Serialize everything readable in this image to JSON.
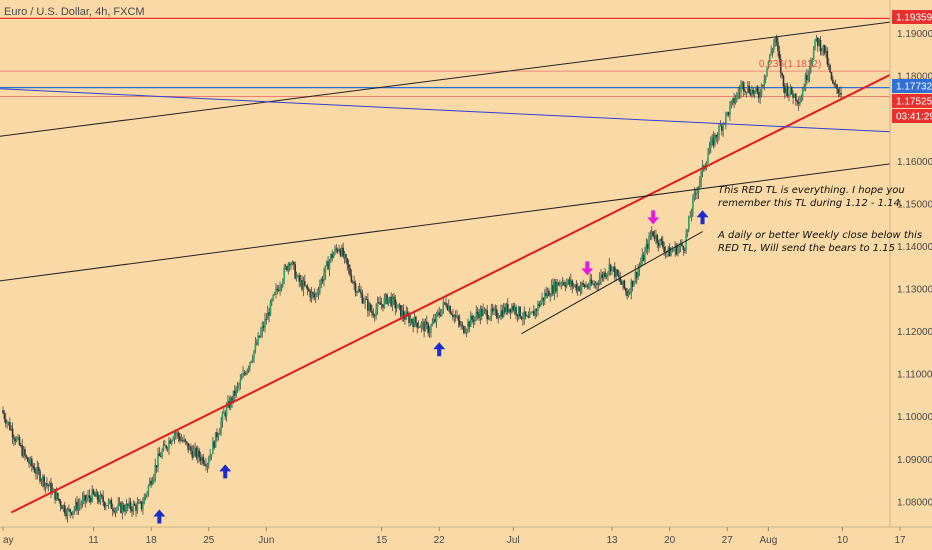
{
  "header": {
    "title": "Euro / U.S. Dollar, 4h, FXCM"
  },
  "annotations": {
    "note1_line1": "This RED TL is everything. I hope you",
    "note1_line2": "remember this TL during 1.12 - 1.14.",
    "note2_line1": "A daily or better Weekly close below this",
    "note2_line2": "RED TL, Will send the bears to 1.15",
    "fib_label": "0.236(1.1812)"
  },
  "price_tags": [
    {
      "label": "1.19359",
      "value": 1.19359,
      "color": "#e8312e"
    },
    {
      "label": "1.17732",
      "value": 1.17732,
      "color": "#2f6fd6"
    },
    {
      "label": "1.17525",
      "value": 1.17525,
      "color": "#e8312e"
    },
    {
      "label": "03:41:29",
      "value": 1.1729,
      "color": "#e8312e"
    }
  ],
  "chart_data": {
    "type": "candlestick",
    "title": "Euro / U.S. Dollar, 4h, FXCM",
    "ylim": [
      1.0755,
      1.1965
    ],
    "y_ticks": [
      1.08,
      1.09,
      1.1,
      1.11,
      1.12,
      1.13,
      1.14,
      1.15,
      1.16,
      1.17,
      1.18,
      1.19
    ],
    "y_tick_labels": [
      "1.08000",
      "1.09000",
      "1.10000",
      "1.11000",
      "1.12000",
      "1.13000",
      "1.14000",
      "1.15000",
      "1.16000",
      "1.17000",
      "1.18000",
      "1.19000"
    ],
    "x_ticks": [
      {
        "label": "ay",
        "day": 0
      },
      {
        "label": "11",
        "day": 11
      },
      {
        "label": "18",
        "day": 18
      },
      {
        "label": "25",
        "day": 25
      },
      {
        "label": "Jun",
        "day": 32
      },
      {
        "label": "15",
        "day": 46
      },
      {
        "label": "22",
        "day": 53
      },
      {
        "label": "Jul",
        "day": 62
      },
      {
        "label": "13",
        "day": 74
      },
      {
        "label": "20",
        "day": 81
      },
      {
        "label": "27",
        "day": 88
      },
      {
        "label": "Aug",
        "day": 93
      },
      {
        "label": "10",
        "day": 102
      },
      {
        "label": "17",
        "day": 109
      }
    ],
    "price_path": [
      [
        0,
        1.1015
      ],
      [
        3,
        1.09
      ],
      [
        6,
        1.083
      ],
      [
        8,
        1.0775
      ],
      [
        11,
        1.0815
      ],
      [
        14,
        1.0785
      ],
      [
        17,
        1.079
      ],
      [
        19,
        1.09
      ],
      [
        21,
        1.0965
      ],
      [
        23,
        1.092
      ],
      [
        25,
        1.0895
      ],
      [
        27,
        1.1005
      ],
      [
        29,
        1.108
      ],
      [
        31,
        1.117
      ],
      [
        33,
        1.1275
      ],
      [
        35,
        1.137
      ],
      [
        36,
        1.132
      ],
      [
        38,
        1.128
      ],
      [
        40,
        1.1375
      ],
      [
        41,
        1.14
      ],
      [
        43,
        1.1305
      ],
      [
        45,
        1.1245
      ],
      [
        47,
        1.128
      ],
      [
        49,
        1.1235
      ],
      [
        52,
        1.1205
      ],
      [
        54,
        1.127
      ],
      [
        56,
        1.1205
      ],
      [
        58,
        1.1245
      ],
      [
        60,
        1.124
      ],
      [
        62,
        1.126
      ],
      [
        64,
        1.1225
      ],
      [
        66,
        1.1285
      ],
      [
        68,
        1.132
      ],
      [
        70,
        1.1305
      ],
      [
        72,
        1.131
      ],
      [
        74,
        1.1355
      ],
      [
        76,
        1.129
      ],
      [
        78,
        1.1375
      ],
      [
        79,
        1.1435
      ],
      [
        81,
        1.1385
      ],
      [
        83,
        1.1405
      ],
      [
        84,
        1.1505
      ],
      [
        86,
        1.163
      ],
      [
        88,
        1.1705
      ],
      [
        90,
        1.178
      ],
      [
        92,
        1.1755
      ],
      [
        94,
        1.189
      ],
      [
        95,
        1.1775
      ],
      [
        97,
        1.1745
      ],
      [
        99,
        1.1885
      ],
      [
        100,
        1.186
      ],
      [
        101,
        1.1775
      ],
      [
        102,
        1.1765
      ]
    ],
    "horizontal_lines": [
      {
        "value": 1.19359,
        "color": "#e8312e",
        "width": 1.3
      },
      {
        "value": 1.1812,
        "color": "#e8736a",
        "width": 0.8
      },
      {
        "value": 1.17732,
        "color": "#2f6fd6",
        "width": 1.3
      },
      {
        "value": 1.17525,
        "color": "#e8736a",
        "width": 0.8
      }
    ],
    "trend_lines": [
      {
        "name": "red-uptrend",
        "from": [
          1,
          1.0775
        ],
        "to": [
          109,
          1.1815
        ],
        "color": "#e01c1c",
        "width": 2
      },
      {
        "name": "upper-channel",
        "from": [
          -2,
          1.1655
        ],
        "to": [
          111,
          1.1935
        ],
        "color": "#222222",
        "width": 1
      },
      {
        "name": "mid-resistance",
        "from": [
          -2,
          1.1315
        ],
        "to": [
          120,
          1.1625
        ],
        "color": "#222222",
        "width": 1
      },
      {
        "name": "blue-downtrend",
        "from": [
          -2,
          1.1772
        ],
        "to": [
          120,
          1.1658
        ],
        "color": "#2f3fd0",
        "width": 1
      },
      {
        "name": "short-channel",
        "from": [
          63,
          1.1195
        ],
        "to": [
          85,
          1.1435
        ],
        "color": "#222222",
        "width": 1
      }
    ],
    "arrows": [
      {
        "day": 19,
        "value": 1.0782,
        "color": "#1a2ecf",
        "dir": "up"
      },
      {
        "day": 27,
        "value": 1.0888,
        "color": "#1a2ecf",
        "dir": "up"
      },
      {
        "day": 53,
        "value": 1.1175,
        "color": "#1a2ecf",
        "dir": "up"
      },
      {
        "day": 85,
        "value": 1.1485,
        "color": "#1a2ecf",
        "dir": "up"
      },
      {
        "day": 71,
        "value": 1.1332,
        "color": "#e81ad9",
        "dir": "down"
      },
      {
        "day": 79,
        "value": 1.1452,
        "color": "#e81ad9",
        "dir": "down"
      }
    ]
  }
}
